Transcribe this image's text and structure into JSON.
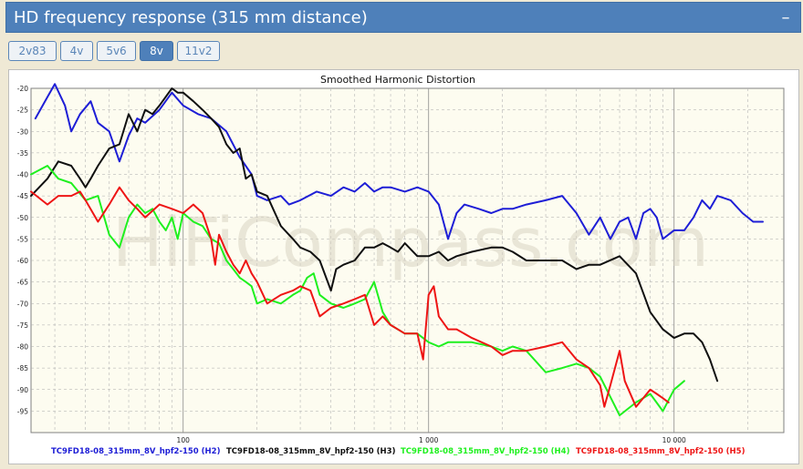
{
  "header": {
    "title": "HD frequency response (315 mm distance)",
    "collapse_label": "–"
  },
  "tabs": [
    {
      "label": "2v83",
      "active": false
    },
    {
      "label": "4v",
      "active": false
    },
    {
      "label": "5v6",
      "active": false
    },
    {
      "label": "8v",
      "active": true
    },
    {
      "label": "11v2",
      "active": false
    }
  ],
  "watermark": "HiFiCompass.com",
  "chart_data": {
    "type": "line",
    "title": "Smoothed Harmonic Distortion",
    "xlabel": "",
    "ylabel": "",
    "x_scale": "log",
    "xlim": [
      24,
      28000
    ],
    "ylim": [
      -100,
      -20
    ],
    "x_ticks": [
      100,
      1000,
      10000
    ],
    "x_tick_labels": [
      "100",
      "1 000",
      "10 000"
    ],
    "y_ticks": [
      -20,
      -25,
      -30,
      -35,
      -40,
      -45,
      -50,
      -55,
      -60,
      -65,
      -70,
      -75,
      -80,
      -85,
      -90,
      -95
    ],
    "grid": true,
    "legend_position": "bottom",
    "series": [
      {
        "name": "TC9FD18-08_315mm_8V_hpf2-150 (H2)",
        "color": "#1e1ed6",
        "points": [
          [
            25,
            -27
          ],
          [
            28,
            -22
          ],
          [
            30,
            -19
          ],
          [
            33,
            -24
          ],
          [
            35,
            -30
          ],
          [
            38,
            -26
          ],
          [
            42,
            -23
          ],
          [
            45,
            -28
          ],
          [
            50,
            -30
          ],
          [
            55,
            -37
          ],
          [
            60,
            -31
          ],
          [
            65,
            -27
          ],
          [
            70,
            -28
          ],
          [
            80,
            -25
          ],
          [
            90,
            -21
          ],
          [
            100,
            -24
          ],
          [
            115,
            -26
          ],
          [
            130,
            -27
          ],
          [
            150,
            -30
          ],
          [
            170,
            -36
          ],
          [
            190,
            -40
          ],
          [
            200,
            -45
          ],
          [
            220,
            -46
          ],
          [
            250,
            -45
          ],
          [
            270,
            -47
          ],
          [
            300,
            -46
          ],
          [
            350,
            -44
          ],
          [
            400,
            -45
          ],
          [
            450,
            -43
          ],
          [
            500,
            -44
          ],
          [
            550,
            -42
          ],
          [
            600,
            -44
          ],
          [
            650,
            -43
          ],
          [
            700,
            -43
          ],
          [
            800,
            -44
          ],
          [
            900,
            -43
          ],
          [
            1000,
            -44
          ],
          [
            1100,
            -47
          ],
          [
            1200,
            -55
          ],
          [
            1300,
            -49
          ],
          [
            1400,
            -47
          ],
          [
            1600,
            -48
          ],
          [
            1800,
            -49
          ],
          [
            2000,
            -48
          ],
          [
            2200,
            -48
          ],
          [
            2500,
            -47
          ],
          [
            3000,
            -46
          ],
          [
            3500,
            -45
          ],
          [
            4000,
            -49
          ],
          [
            4500,
            -54
          ],
          [
            5000,
            -50
          ],
          [
            5500,
            -55
          ],
          [
            6000,
            -51
          ],
          [
            6500,
            -50
          ],
          [
            7000,
            -55
          ],
          [
            7500,
            -49
          ],
          [
            8000,
            -48
          ],
          [
            8500,
            -50
          ],
          [
            9000,
            -55
          ],
          [
            10000,
            -53
          ],
          [
            11000,
            -53
          ],
          [
            12000,
            -50
          ],
          [
            13000,
            -46
          ],
          [
            14000,
            -48
          ],
          [
            15000,
            -45
          ],
          [
            17000,
            -46
          ],
          [
            19000,
            -49
          ],
          [
            21000,
            -51
          ],
          [
            23000,
            -51
          ]
        ]
      },
      {
        "name": "TC9FD18-08_315mm_8V_hpf2-150 (H3)",
        "color": "#101010",
        "points": [
          [
            24,
            -45
          ],
          [
            28,
            -41
          ],
          [
            31,
            -37
          ],
          [
            35,
            -38
          ],
          [
            38,
            -41
          ],
          [
            40,
            -43
          ],
          [
            42,
            -41
          ],
          [
            45,
            -38
          ],
          [
            50,
            -34
          ],
          [
            55,
            -33
          ],
          [
            60,
            -26
          ],
          [
            65,
            -30
          ],
          [
            70,
            -25
          ],
          [
            75,
            -26
          ],
          [
            80,
            -24
          ],
          [
            90,
            -20
          ],
          [
            95,
            -21
          ],
          [
            100,
            -21
          ],
          [
            110,
            -23
          ],
          [
            120,
            -25
          ],
          [
            130,
            -27
          ],
          [
            140,
            -29
          ],
          [
            150,
            -33
          ],
          [
            160,
            -35
          ],
          [
            170,
            -34
          ],
          [
            180,
            -41
          ],
          [
            190,
            -40
          ],
          [
            200,
            -44
          ],
          [
            220,
            -45
          ],
          [
            250,
            -52
          ],
          [
            280,
            -55
          ],
          [
            300,
            -57
          ],
          [
            330,
            -58
          ],
          [
            360,
            -60
          ],
          [
            400,
            -67
          ],
          [
            420,
            -62
          ],
          [
            450,
            -61
          ],
          [
            500,
            -60
          ],
          [
            550,
            -57
          ],
          [
            600,
            -57
          ],
          [
            650,
            -56
          ],
          [
            700,
            -57
          ],
          [
            750,
            -58
          ],
          [
            800,
            -56
          ],
          [
            900,
            -59
          ],
          [
            1000,
            -59
          ],
          [
            1100,
            -58
          ],
          [
            1200,
            -60
          ],
          [
            1300,
            -59
          ],
          [
            1500,
            -58
          ],
          [
            1800,
            -57
          ],
          [
            2000,
            -57
          ],
          [
            2200,
            -58
          ],
          [
            2500,
            -60
          ],
          [
            3000,
            -60
          ],
          [
            3500,
            -60
          ],
          [
            4000,
            -62
          ],
          [
            4500,
            -61
          ],
          [
            5000,
            -61
          ],
          [
            6000,
            -59
          ],
          [
            7000,
            -63
          ],
          [
            8000,
            -72
          ],
          [
            9000,
            -76
          ],
          [
            10000,
            -78
          ],
          [
            11000,
            -77
          ],
          [
            12000,
            -77
          ],
          [
            13000,
            -79
          ],
          [
            14000,
            -83
          ],
          [
            15000,
            -88
          ]
        ]
      },
      {
        "name": "TC9FD18-08_315mm_8V_hpf2-150 (H4)",
        "color": "#1ff01f",
        "points": [
          [
            24,
            -40
          ],
          [
            28,
            -38
          ],
          [
            31,
            -41
          ],
          [
            35,
            -42
          ],
          [
            40,
            -46
          ],
          [
            45,
            -45
          ],
          [
            50,
            -54
          ],
          [
            55,
            -57
          ],
          [
            60,
            -50
          ],
          [
            65,
            -47
          ],
          [
            70,
            -49
          ],
          [
            75,
            -48
          ],
          [
            80,
            -51
          ],
          [
            85,
            -53
          ],
          [
            90,
            -50
          ],
          [
            95,
            -55
          ],
          [
            100,
            -49
          ],
          [
            110,
            -51
          ],
          [
            120,
            -52
          ],
          [
            130,
            -55
          ],
          [
            140,
            -56
          ],
          [
            150,
            -60
          ],
          [
            160,
            -62
          ],
          [
            170,
            -64
          ],
          [
            180,
            -65
          ],
          [
            190,
            -66
          ],
          [
            200,
            -70
          ],
          [
            220,
            -69
          ],
          [
            250,
            -70
          ],
          [
            280,
            -68
          ],
          [
            300,
            -67
          ],
          [
            320,
            -64
          ],
          [
            340,
            -63
          ],
          [
            360,
            -68
          ],
          [
            400,
            -70
          ],
          [
            450,
            -71
          ],
          [
            500,
            -70
          ],
          [
            550,
            -69
          ],
          [
            600,
            -65
          ],
          [
            650,
            -72
          ],
          [
            700,
            -75
          ],
          [
            800,
            -77
          ],
          [
            900,
            -77
          ],
          [
            1000,
            -79
          ],
          [
            1100,
            -80
          ],
          [
            1200,
            -79
          ],
          [
            1300,
            -79
          ],
          [
            1500,
            -79
          ],
          [
            1800,
            -80
          ],
          [
            2000,
            -81
          ],
          [
            2200,
            -80
          ],
          [
            2500,
            -81
          ],
          [
            3000,
            -86
          ],
          [
            3500,
            -85
          ],
          [
            4000,
            -84
          ],
          [
            4500,
            -85
          ],
          [
            5000,
            -87
          ],
          [
            6000,
            -96
          ],
          [
            7000,
            -93
          ],
          [
            8000,
            -91
          ],
          [
            9000,
            -95
          ],
          [
            10000,
            -90
          ],
          [
            11000,
            -88
          ]
        ]
      },
      {
        "name": "TC9FD18-08_315mm_8V_hpf2-150 (H5)",
        "color": "#ee1515",
        "points": [
          [
            24,
            -44
          ],
          [
            28,
            -47
          ],
          [
            31,
            -45
          ],
          [
            35,
            -45
          ],
          [
            38,
            -44
          ],
          [
            40,
            -46
          ],
          [
            45,
            -51
          ],
          [
            50,
            -47
          ],
          [
            55,
            -43
          ],
          [
            60,
            -46
          ],
          [
            65,
            -48
          ],
          [
            70,
            -50
          ],
          [
            80,
            -47
          ],
          [
            90,
            -48
          ],
          [
            100,
            -49
          ],
          [
            110,
            -47
          ],
          [
            120,
            -49
          ],
          [
            130,
            -55
          ],
          [
            135,
            -61
          ],
          [
            140,
            -54
          ],
          [
            150,
            -58
          ],
          [
            160,
            -61
          ],
          [
            170,
            -63
          ],
          [
            180,
            -60
          ],
          [
            190,
            -63
          ],
          [
            200,
            -65
          ],
          [
            220,
            -70
          ],
          [
            250,
            -68
          ],
          [
            280,
            -67
          ],
          [
            300,
            -66
          ],
          [
            330,
            -67
          ],
          [
            360,
            -73
          ],
          [
            400,
            -71
          ],
          [
            450,
            -70
          ],
          [
            500,
            -69
          ],
          [
            550,
            -68
          ],
          [
            600,
            -75
          ],
          [
            650,
            -73
          ],
          [
            700,
            -75
          ],
          [
            800,
            -77
          ],
          [
            900,
            -77
          ],
          [
            950,
            -83
          ],
          [
            1000,
            -68
          ],
          [
            1050,
            -66
          ],
          [
            1100,
            -73
          ],
          [
            1200,
            -76
          ],
          [
            1300,
            -76
          ],
          [
            1500,
            -78
          ],
          [
            1800,
            -80
          ],
          [
            2000,
            -82
          ],
          [
            2200,
            -81
          ],
          [
            2500,
            -81
          ],
          [
            3000,
            -80
          ],
          [
            3500,
            -79
          ],
          [
            4000,
            -83
          ],
          [
            4500,
            -85
          ],
          [
            5000,
            -89
          ],
          [
            5200,
            -94
          ],
          [
            5500,
            -89
          ],
          [
            6000,
            -81
          ],
          [
            6300,
            -88
          ],
          [
            7000,
            -94
          ],
          [
            8000,
            -90
          ],
          [
            8500,
            -91
          ],
          [
            9000,
            -92
          ],
          [
            9500,
            -93
          ]
        ]
      }
    ]
  }
}
